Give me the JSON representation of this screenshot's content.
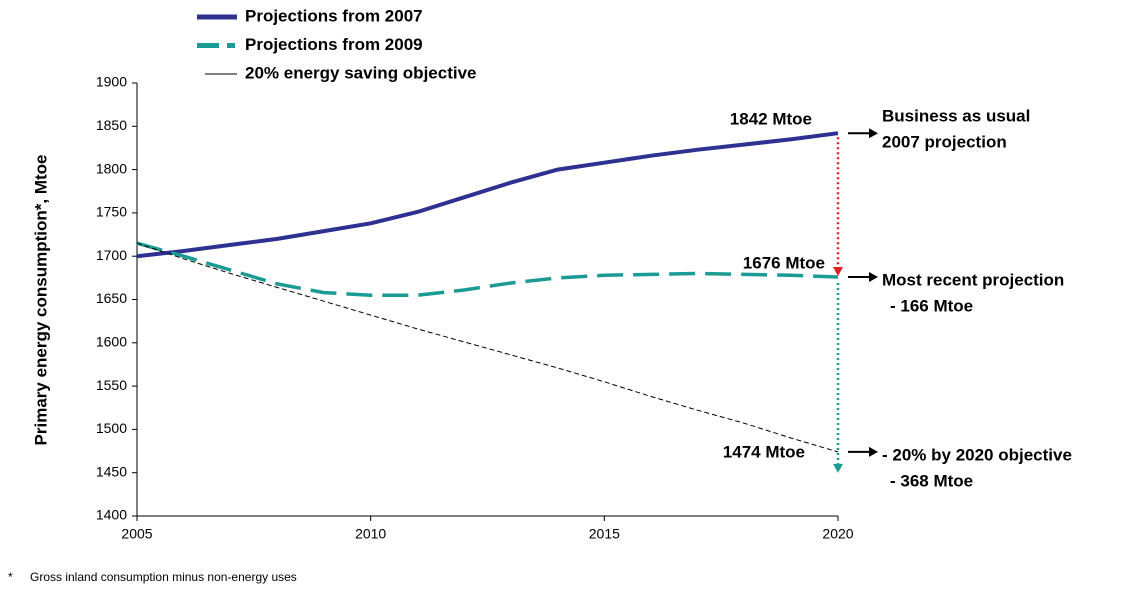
{
  "chart_data": {
    "type": "line",
    "y_axis_label": "Primary energy consumption*, Mtoe",
    "x": [
      2005,
      2006,
      2007,
      2008,
      2009,
      2010,
      2011,
      2012,
      2013,
      2014,
      2015,
      2016,
      2017,
      2018,
      2019,
      2020
    ],
    "series": [
      {
        "name": "Projections from 2007",
        "color": "#2e3192",
        "dash": "solid",
        "width": 4,
        "values": [
          1700,
          1706,
          1713,
          1720,
          1729,
          1738,
          1751,
          1768,
          1785,
          1800,
          1808,
          1816,
          1823,
          1829,
          1835,
          1842
        ]
      },
      {
        "name": "Projections from 2009",
        "color": "#1a9b94",
        "dash": "dashed",
        "width": 3.5,
        "values": [
          1715,
          1700,
          1684,
          1668,
          1658,
          1655,
          1655,
          1661,
          1669,
          1675,
          1678,
          1679,
          1680,
          1679,
          1678,
          1676
        ]
      },
      {
        "name": "20% energy saving objective",
        "color": "#000000",
        "dash": "thin-dashed",
        "width": 1,
        "values": [
          1715,
          1697,
          1680,
          1664,
          1648,
          1632,
          1616,
          1601,
          1586,
          1571,
          1555,
          1538,
          1522,
          1507,
          1490,
          1474
        ]
      }
    ],
    "xlim": [
      2005,
      2020
    ],
    "xticks": [
      2005,
      2010,
      2015,
      2020
    ],
    "ylim": [
      1400,
      1900
    ],
    "yticks": [
      1400,
      1450,
      1500,
      1550,
      1600,
      1650,
      1700,
      1750,
      1800,
      1850,
      1900
    ],
    "end_labels": [
      "1842 Mtoe",
      "1676 Mtoe",
      "1474 Mtoe"
    ],
    "side_notes": [
      [
        "Business as usual",
        "2007 projection"
      ],
      [
        "Most recent projection",
        "- 166 Mtoe"
      ],
      [
        "- 20% by 2020 objective",
        "- 368 Mtoe"
      ]
    ],
    "footnote": {
      "marker": "*",
      "text": "Gross inland consumption minus non-energy uses"
    }
  }
}
